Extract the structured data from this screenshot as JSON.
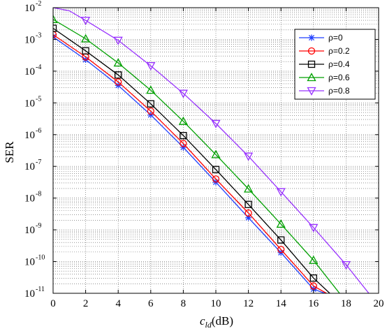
{
  "chart_data": {
    "type": "line",
    "xlabel_main": "c",
    "xlabel_sub": "ld",
    "xlabel_unit": "(dB)",
    "ylabel": "SER",
    "xlim": [
      0,
      20
    ],
    "ylim_exp": [
      -11,
      -2
    ],
    "y_scale": "log",
    "x_ticks": [
      "0",
      "2",
      "4",
      "6",
      "8",
      "10",
      "12",
      "14",
      "16",
      "18",
      "20"
    ],
    "y_tick_base": "10",
    "y_tick_exps": [
      "-2",
      "-3",
      "-4",
      "-5",
      "-6",
      "-7",
      "-8",
      "-9",
      "-10",
      "-11"
    ],
    "grid": true,
    "legend_position": "top-right",
    "series": [
      {
        "name": "ρ=0",
        "color": "#1f3fff",
        "marker": "asterisk",
        "x": [
          0,
          2,
          4,
          6,
          8,
          10,
          12,
          14,
          16,
          16.7
        ],
        "log10_y": [
          -2.92,
          -3.64,
          -4.45,
          -5.38,
          -6.4,
          -7.5,
          -8.62,
          -9.72,
          -10.87,
          -11.0
        ]
      },
      {
        "name": "ρ=0.2",
        "color": "#ff0000",
        "marker": "circle",
        "x": [
          0,
          2,
          4,
          6,
          8,
          10,
          12,
          14,
          16,
          16.8
        ],
        "log10_y": [
          -2.85,
          -3.55,
          -4.34,
          -5.26,
          -6.28,
          -7.4,
          -8.47,
          -9.62,
          -10.77,
          -11.0
        ]
      },
      {
        "name": "ρ=0.4",
        "color": "#000000",
        "marker": "square",
        "x": [
          0,
          2,
          4,
          6,
          8,
          10,
          12,
          14,
          16,
          17.0
        ],
        "log10_y": [
          -2.65,
          -3.36,
          -4.12,
          -5.03,
          -6.03,
          -7.1,
          -8.2,
          -9.32,
          -10.52,
          -11.0
        ]
      },
      {
        "name": "ρ=0.6",
        "color": "#00a000",
        "marker": "triangle-up",
        "x": [
          0,
          2,
          4,
          6,
          8,
          10,
          12,
          14,
          16,
          17.6
        ],
        "log10_y": [
          -2.37,
          -2.98,
          -3.74,
          -4.6,
          -5.58,
          -6.63,
          -7.71,
          -8.82,
          -9.96,
          -11.0
        ]
      },
      {
        "name": "ρ=0.8",
        "color": "#9933ff",
        "marker": "triangle-down",
        "x": [
          0,
          1,
          2,
          4,
          6,
          8,
          10,
          12,
          14,
          16,
          18,
          19.4
        ],
        "log10_y": [
          -2.0,
          -2.1,
          -2.4,
          -3.03,
          -3.83,
          -4.7,
          -5.65,
          -6.68,
          -7.8,
          -8.93,
          -10.1,
          -11.0
        ],
        "marker_skip": [
          0,
          1
        ]
      }
    ]
  }
}
